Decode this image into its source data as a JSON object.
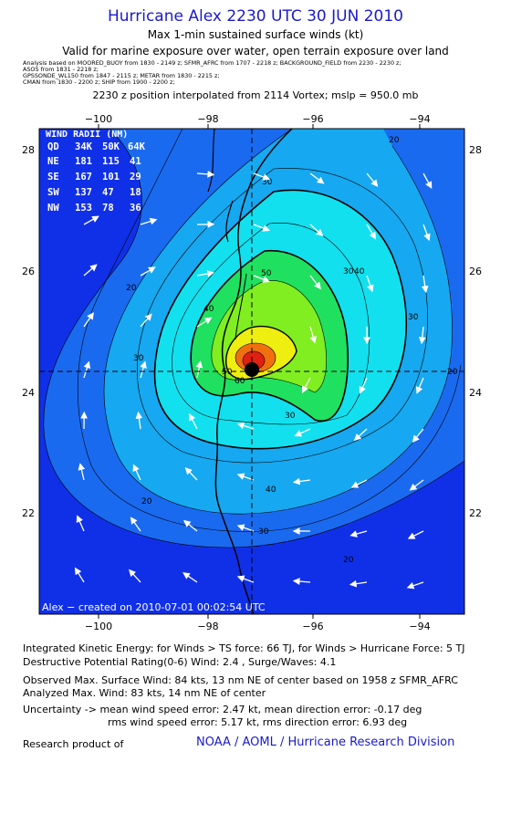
{
  "header": {
    "title": "Hurricane Alex 2230 UTC 30 JUN 2010",
    "subtitle1": "Max 1-min sustained surface winds (kt)",
    "subtitle2": "Valid for marine exposure over water, open terrain exposure over land",
    "sources": [
      "Analysis based on  MOORED_BUOY from 1830 - 2149 z;  SFMR_AFRC from 1707 - 2218 z;  BACKGROUND_FIELD from 2230 - 2230 z;",
      "ASOS from 1831 - 2218 z;",
      "GPSSONDE_WL150 from 1847 - 2115 z;  METAR from 1830 - 2215 z;",
      "CMAN from 1830 - 2200 z;  SHIP from 1900 - 2200 z;"
    ],
    "interp": "2230 z position interpolated from 2114 Vortex; mslp = 950.0 mb"
  },
  "map": {
    "lon_ticks": [
      "−100",
      "−98",
      "−96",
      "−94"
    ],
    "lat_ticks": [
      "22",
      "24",
      "26",
      "28"
    ],
    "lon_range": [
      -101,
      -94.5
    ],
    "lat_range": [
      20.3,
      28.3
    ],
    "center": {
      "lon": -97.1,
      "lat": 24.35
    },
    "contour_labels": [
      "20",
      "20",
      "20",
      "20",
      "20",
      "30",
      "30",
      "30",
      "30",
      "30",
      "30",
      "40",
      "40",
      "40",
      "50",
      "50",
      "60"
    ],
    "stamp": "Alex − created on 2010-07-01 00:02:54 UTC",
    "wind_radii": {
      "title": "WIND RADII (NM)",
      "header": [
        "QD",
        "34K",
        "50K",
        "64K"
      ],
      "rows": [
        [
          "NE",
          "181",
          "115",
          "41"
        ],
        [
          "SE",
          "167",
          "101",
          "29"
        ],
        [
          "SW",
          "137",
          "47",
          "18"
        ],
        [
          "NW",
          "153",
          "78",
          "36"
        ]
      ]
    },
    "colors": {
      "ocean_outer": "#1030e8",
      "c20": "#1a6af0",
      "c30": "#16a8f0",
      "c40": "#12e0ee",
      "c50": "#20e060",
      "c60": "#80ee20",
      "c70": "#eeee10",
      "c80": "#f07010",
      "c90": "#e02010"
    }
  },
  "footer": {
    "ike": "Integrated Kinetic Energy:  for Winds > TS force: 66 TJ,  for Winds > Hurricane Force: 5 TJ",
    "dpr": "Destructive Potential Rating(0-6)   Wind: 2.4 , Surge/Waves: 4.1",
    "obs": "Observed Max. Surface Wind: 84 kts, 13 nm NE of center based on 1958 z SFMR_AFRC",
    "ana": "Analyzed Max. Wind: 83 kts, 14 nm NE of center",
    "unc1": "Uncertainty -> mean wind speed error: 2.47 kt,   mean direction error:  -0.17 deg",
    "unc2": "rms wind speed error: 5.17 kt,   rms direction error: 6.93 deg",
    "credit_label": "Research product of",
    "credit_org": "NOAA / AOML / Hurricane Research Division"
  }
}
